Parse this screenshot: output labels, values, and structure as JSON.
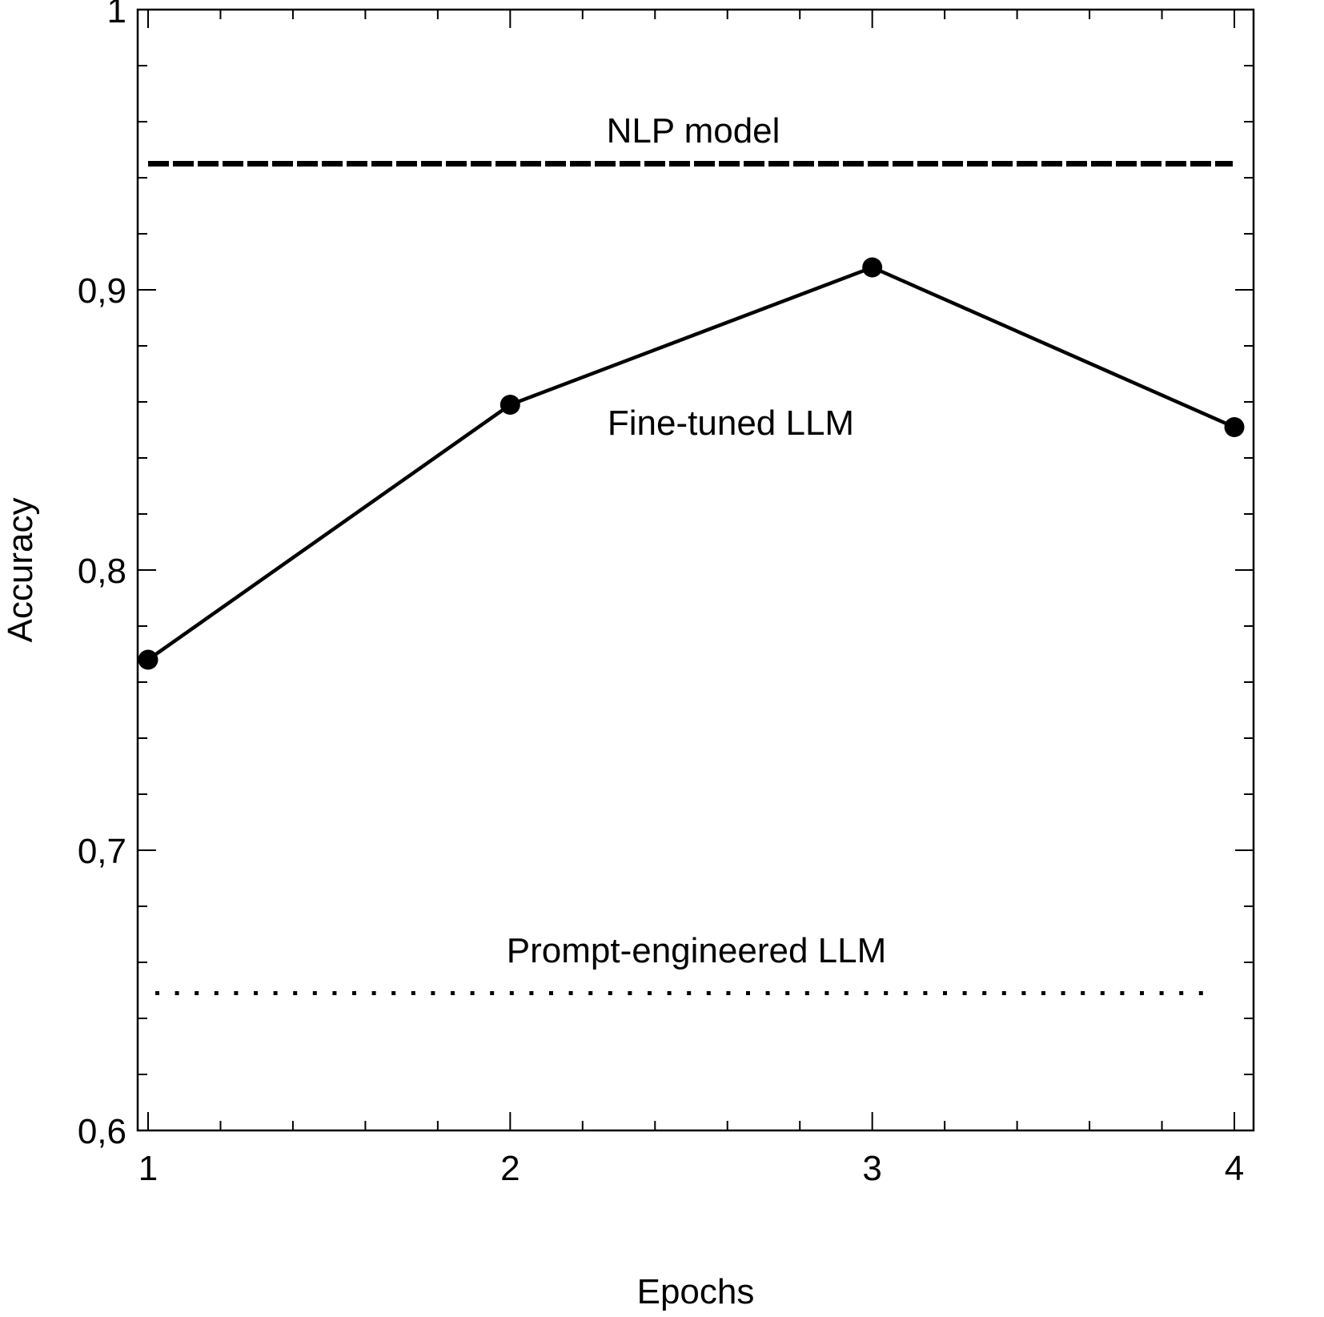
{
  "chart_data": {
    "type": "line",
    "title": "",
    "xlabel": "Epochs",
    "ylabel": "Accuracy",
    "xlim": [
      1,
      4
    ],
    "ylim": [
      0.6,
      1.0
    ],
    "x_ticks": [
      "1",
      "2",
      "3",
      "4"
    ],
    "y_ticks": [
      "0,6",
      "0,7",
      "0,8",
      "0,9",
      "1"
    ],
    "grid": false,
    "legend": "none (inline annotations)",
    "x": [
      1,
      2,
      3,
      4
    ],
    "series": [
      {
        "name": "Fine-tuned LLM",
        "style": "solid line with circle markers",
        "values": [
          0.768,
          0.859,
          0.908,
          0.851
        ]
      },
      {
        "name": "NLP model",
        "style": "dashed horizontal line",
        "values": [
          0.945,
          0.945,
          0.945,
          0.945
        ]
      },
      {
        "name": "Prompt-engineered LLM",
        "style": "dotted horizontal line",
        "values": [
          0.649,
          0.649,
          0.649,
          0.649
        ]
      }
    ],
    "annotations": [
      {
        "text": "NLP model",
        "x": 2.5,
        "y": 0.957
      },
      {
        "text": "Fine-tuned LLM",
        "x": 2.6,
        "y": 0.852
      },
      {
        "text": "Prompt-engineered LLM",
        "x": 2.5,
        "y": 0.666
      }
    ]
  }
}
